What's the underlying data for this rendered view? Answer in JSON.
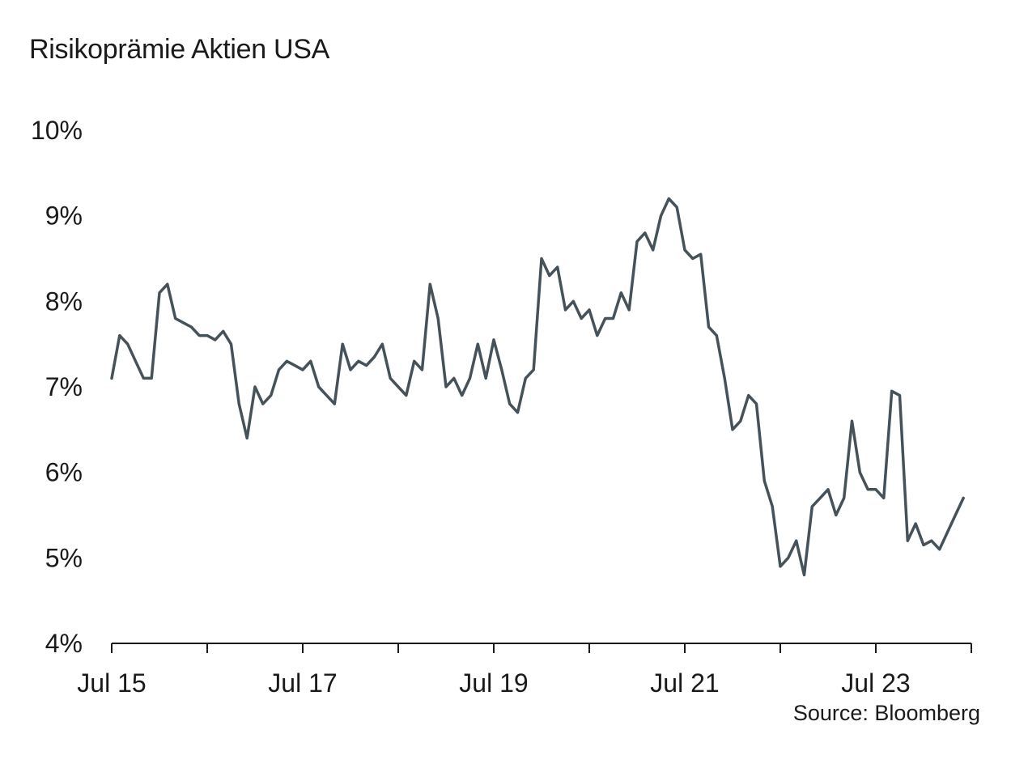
{
  "chart_data": {
    "type": "line",
    "title": "Risikoprämie Aktien USA",
    "source": "Source: Bloomberg",
    "xlabel": "",
    "ylabel": "",
    "ylim": [
      4,
      10
    ],
    "yticks": [
      "4%",
      "5%",
      "6%",
      "7%",
      "8%",
      "9%",
      "10%"
    ],
    "xticks": [
      "Jul 15",
      "Jul 17",
      "Jul 19",
      "Jul 21",
      "Jul 23"
    ],
    "grid": false,
    "legend": "none",
    "line_color": "#46525a",
    "series": [
      {
        "x": [
          "2015-07",
          "2015-08",
          "2015-09",
          "2015-10",
          "2015-11",
          "2015-12",
          "2016-01",
          "2016-02",
          "2016-03",
          "2016-04",
          "2016-05",
          "2016-06",
          "2016-07",
          "2016-08",
          "2016-09",
          "2016-10",
          "2016-11",
          "2016-12",
          "2017-01",
          "2017-02",
          "2017-03",
          "2017-04",
          "2017-05",
          "2017-06",
          "2017-07",
          "2017-08",
          "2017-09",
          "2017-10",
          "2017-11",
          "2017-12",
          "2018-01",
          "2018-02",
          "2018-03",
          "2018-04",
          "2018-05",
          "2018-06",
          "2018-07",
          "2018-08",
          "2018-09",
          "2018-10",
          "2018-11",
          "2018-12",
          "2019-01",
          "2019-02",
          "2019-03",
          "2019-04",
          "2019-05",
          "2019-06",
          "2019-07",
          "2019-08",
          "2019-09",
          "2019-10",
          "2019-11",
          "2019-12",
          "2020-01",
          "2020-02",
          "2020-03",
          "2020-04",
          "2020-05",
          "2020-06",
          "2020-07",
          "2020-08",
          "2020-09",
          "2020-10",
          "2020-11",
          "2020-12",
          "2021-01",
          "2021-02",
          "2021-03",
          "2021-04",
          "2021-05",
          "2021-06",
          "2021-07",
          "2021-08",
          "2021-09",
          "2021-10",
          "2021-11",
          "2021-12",
          "2022-01",
          "2022-02",
          "2022-03",
          "2022-04",
          "2022-05",
          "2022-06",
          "2022-07",
          "2022-08",
          "2022-09",
          "2022-10",
          "2022-11",
          "2022-12",
          "2023-01",
          "2023-02",
          "2023-03",
          "2023-04",
          "2023-05",
          "2023-06",
          "2023-07",
          "2023-08",
          "2023-09",
          "2023-10",
          "2023-11",
          "2023-12",
          "2024-01",
          "2024-02",
          "2024-03",
          "2024-04",
          "2024-05",
          "2024-06"
        ],
        "values": [
          7.1,
          7.6,
          7.5,
          7.3,
          7.1,
          7.1,
          8.1,
          8.2,
          7.8,
          7.75,
          7.7,
          7.6,
          7.6,
          7.55,
          7.65,
          7.5,
          6.8,
          6.4,
          7.0,
          6.8,
          6.9,
          7.2,
          7.3,
          7.25,
          7.2,
          7.3,
          7.0,
          6.9,
          6.8,
          7.5,
          7.2,
          7.3,
          7.25,
          7.35,
          7.5,
          7.1,
          7.0,
          6.9,
          7.3,
          7.2,
          8.2,
          7.8,
          7.0,
          7.1,
          6.9,
          7.1,
          7.5,
          7.1,
          7.55,
          7.2,
          6.8,
          6.7,
          7.1,
          7.2,
          8.5,
          8.3,
          8.4,
          7.9,
          8.0,
          7.8,
          7.9,
          7.6,
          7.8,
          7.8,
          8.1,
          7.9,
          8.7,
          8.8,
          8.6,
          9.0,
          9.2,
          9.1,
          8.6,
          8.5,
          8.55,
          7.7,
          7.6,
          7.1,
          6.5,
          6.6,
          6.9,
          6.8,
          5.9,
          5.6,
          4.9,
          5.0,
          5.2,
          4.8,
          5.6,
          5.7,
          5.8,
          5.5,
          5.7,
          6.6,
          6.0,
          5.8,
          5.8,
          5.7,
          6.95,
          6.9,
          5.2,
          5.4,
          5.15,
          5.2,
          5.1,
          5.3,
          5.5,
          5.7
        ]
      }
    ]
  }
}
